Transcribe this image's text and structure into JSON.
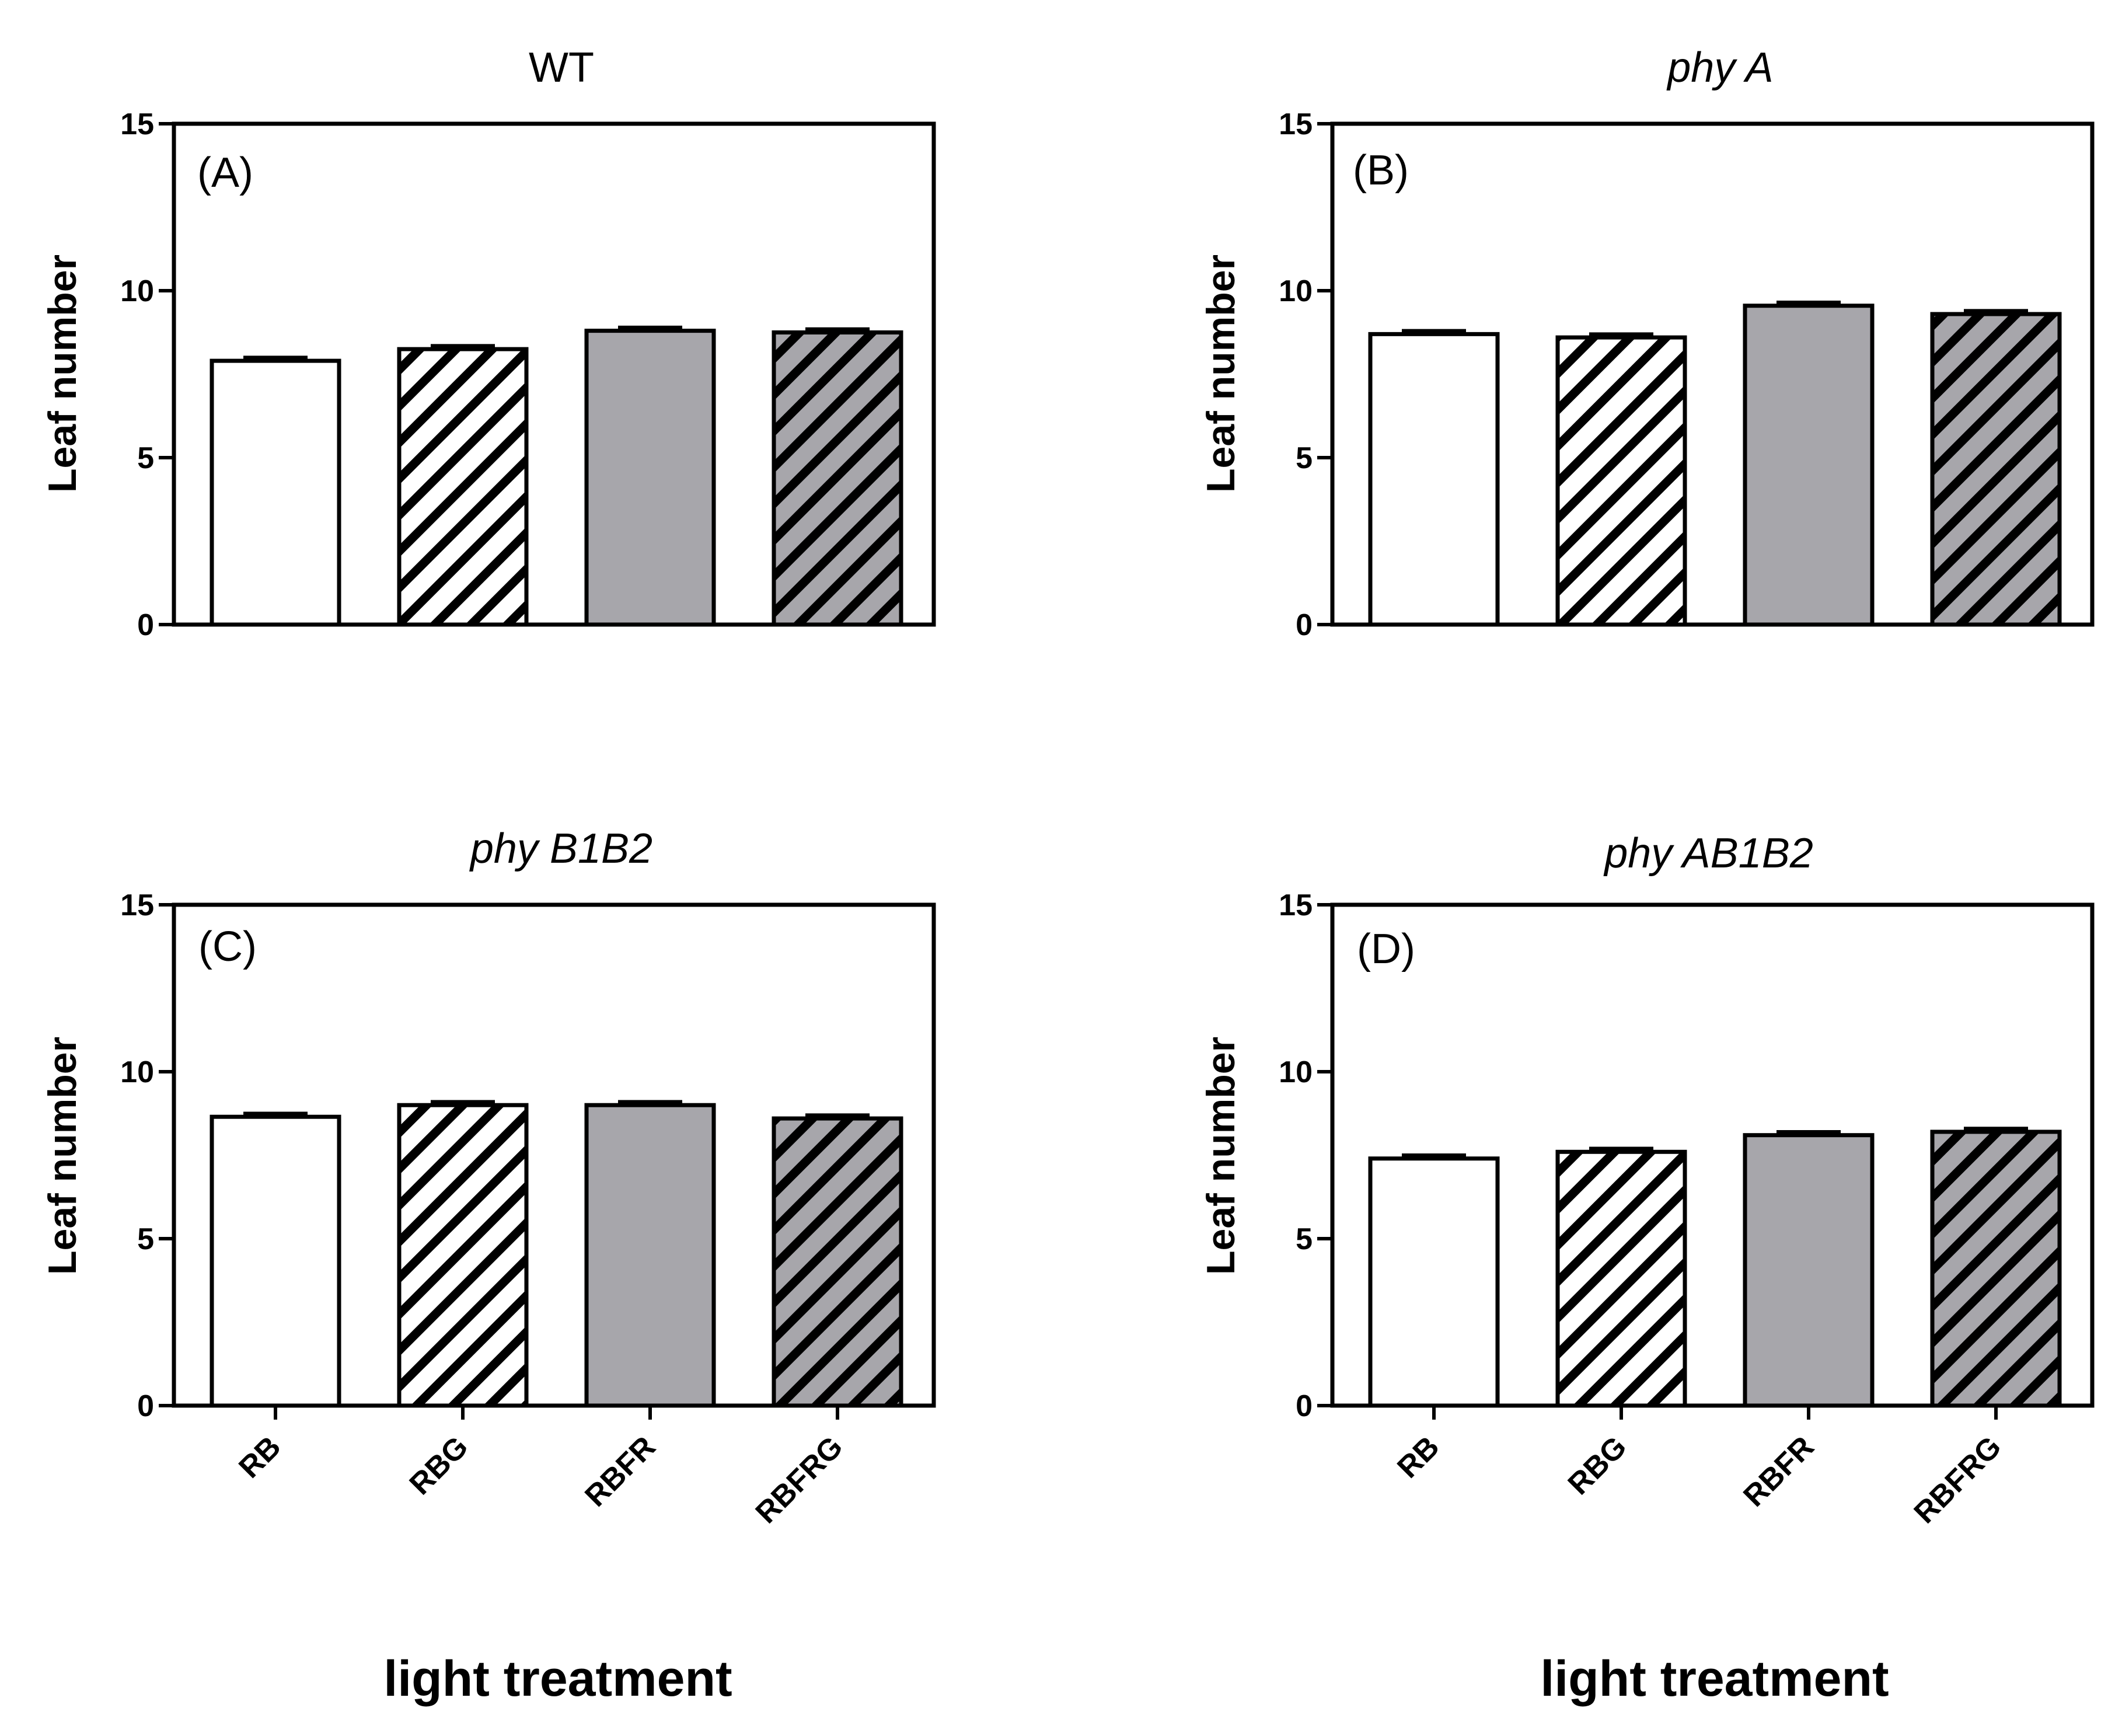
{
  "figure": {
    "x_axis_label": "light treatment"
  },
  "colors": {
    "axis": "#000000",
    "bar_fill_white": "#ffffff",
    "bar_fill_gray": "#a7a6ab",
    "hatch": "#000000",
    "background": "#ffffff"
  },
  "chart_data": [
    {
      "type": "bar",
      "panel": "(A)",
      "title": "WT",
      "title_italic": false,
      "categories": [
        "RB",
        "RBG",
        "RBFR",
        "RBFRG"
      ],
      "values": [
        7.9,
        8.25,
        8.8,
        8.75
      ],
      "errors": [
        0.1,
        0.1,
        0.1,
        0.1
      ],
      "patterns": [
        "white",
        "white-hatched",
        "gray",
        "gray-hatched"
      ],
      "ylabel": "Leaf number",
      "xlabel": "",
      "ylim": [
        0,
        15
      ],
      "yticks": [
        0,
        5,
        10,
        15
      ],
      "show_category_labels": false
    },
    {
      "type": "bar",
      "panel": "(B)",
      "title": "phy A",
      "title_italic": true,
      "categories": [
        "RB",
        "RBG",
        "RBFR",
        "RBFRG"
      ],
      "values": [
        8.7,
        8.6,
        9.55,
        9.3
      ],
      "errors": [
        0.1,
        0.1,
        0.1,
        0.1
      ],
      "patterns": [
        "white",
        "white-hatched",
        "gray",
        "gray-hatched"
      ],
      "ylabel": "Leaf number",
      "xlabel": "",
      "ylim": [
        0,
        15
      ],
      "yticks": [
        0,
        5,
        10,
        15
      ],
      "show_category_labels": false
    },
    {
      "type": "bar",
      "panel": "(C)",
      "title": "phy B1B2",
      "title_italic": true,
      "categories": [
        "RB",
        "RBG",
        "RBFR",
        "RBFRG"
      ],
      "values": [
        8.65,
        9.0,
        9.0,
        8.6
      ],
      "errors": [
        0.1,
        0.1,
        0.1,
        0.1
      ],
      "patterns": [
        "white",
        "white-hatched",
        "gray",
        "gray-hatched"
      ],
      "ylabel": "Leaf number",
      "xlabel": "light treatment",
      "ylim": [
        0,
        15
      ],
      "yticks": [
        0,
        5,
        10,
        15
      ],
      "show_category_labels": true
    },
    {
      "type": "bar",
      "panel": "(D)",
      "title": "phy AB1B2",
      "title_italic": true,
      "categories": [
        "RB",
        "RBG",
        "RBFR",
        "RBFRG"
      ],
      "values": [
        7.4,
        7.6,
        8.1,
        8.2
      ],
      "errors": [
        0.1,
        0.1,
        0.1,
        0.1
      ],
      "patterns": [
        "white",
        "white-hatched",
        "gray",
        "gray-hatched"
      ],
      "ylabel": "Leaf number",
      "xlabel": "light treatment",
      "ylim": [
        0,
        15
      ],
      "yticks": [
        0,
        5,
        10,
        15
      ],
      "show_category_labels": true
    }
  ]
}
